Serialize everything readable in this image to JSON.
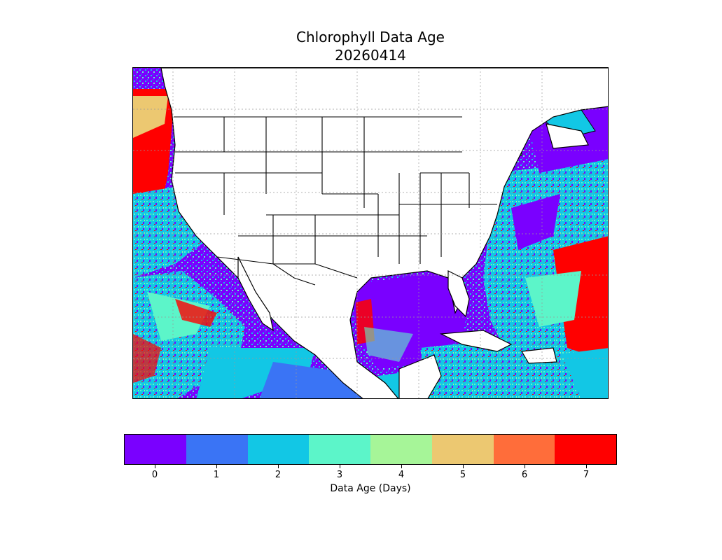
{
  "title": {
    "line1": "Chlorophyll Data Age",
    "line2": "20260414"
  },
  "colorbar": {
    "label": "Data Age (Days)",
    "ticks": [
      "0",
      "1",
      "2",
      "3",
      "4",
      "5",
      "6",
      "7"
    ],
    "colors": [
      "#7a00ff",
      "#3a74f5",
      "#12c7e5",
      "#5cf5c9",
      "#a6f598",
      "#ecc871",
      "#ff6d3a",
      "#ff0000"
    ]
  },
  "map": {
    "projection": "lat-lon",
    "region": "Continental United States, Mexico, Gulf of Mexico and Caribbean",
    "land_color": "#ffffff",
    "boundary_color": "#000000",
    "gridlines": "dotted gray"
  }
}
